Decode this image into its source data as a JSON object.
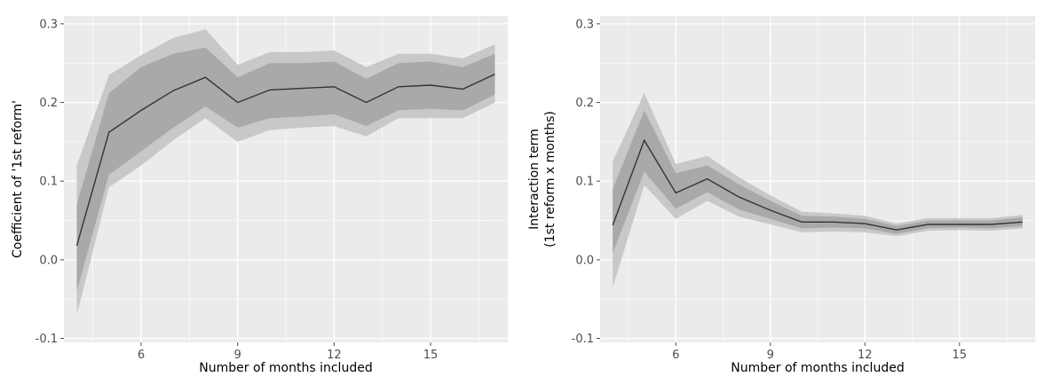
{
  "chart_data": [
    {
      "type": "line",
      "xlabel": "Number of months included",
      "ylabel": "Coefficient of '1st reform'",
      "xlim": [
        3.6,
        17.4
      ],
      "ylim": [
        -0.105,
        0.31
      ],
      "xticks": [
        6,
        9,
        12,
        15
      ],
      "xtick_labels": [
        "6",
        "9",
        "12",
        "15"
      ],
      "yticks": [
        -0.1,
        0.0,
        0.1,
        0.2,
        0.3
      ],
      "ytick_labels": [
        "-0.1",
        "0.0",
        "0.1",
        "0.2",
        "0.3"
      ],
      "grid": true,
      "colors": {
        "panel": "#ebebeb",
        "grid": "#ffffff",
        "band_outer": "#c8c8c8",
        "band_inner": "#a9a9a9",
        "line": "#333333",
        "text": "#4d4d4d"
      },
      "x": [
        4,
        5,
        6,
        7,
        8,
        9,
        10,
        11,
        12,
        13,
        14,
        15,
        16,
        17
      ],
      "series": [
        {
          "values": [
            0.018,
            0.162,
            0.19,
            0.215,
            0.232,
            0.2,
            0.216,
            0.218,
            0.22,
            0.2,
            0.22,
            0.222,
            0.217,
            0.236
          ],
          "ci_inner": [
            [
              -0.04,
              0.07
            ],
            [
              0.108,
              0.212
            ],
            [
              0.138,
              0.245
            ],
            [
              0.168,
              0.262
            ],
            [
              0.195,
              0.27
            ],
            [
              0.168,
              0.232
            ],
            [
              0.18,
              0.25
            ],
            [
              0.182,
              0.25
            ],
            [
              0.185,
              0.252
            ],
            [
              0.17,
              0.23
            ],
            [
              0.19,
              0.25
            ],
            [
              0.192,
              0.252
            ],
            [
              0.19,
              0.245
            ],
            [
              0.21,
              0.262
            ]
          ],
          "ci_outer": [
            [
              -0.07,
              0.12
            ],
            [
              0.092,
              0.235
            ],
            [
              0.12,
              0.26
            ],
            [
              0.152,
              0.282
            ],
            [
              0.18,
              0.293
            ],
            [
              0.15,
              0.248
            ],
            [
              0.165,
              0.264
            ],
            [
              0.168,
              0.264
            ],
            [
              0.17,
              0.266
            ],
            [
              0.157,
              0.245
            ],
            [
              0.18,
              0.262
            ],
            [
              0.18,
              0.262
            ],
            [
              0.18,
              0.256
            ],
            [
              0.2,
              0.274
            ]
          ]
        }
      ]
    },
    {
      "type": "line",
      "xlabel": "Number of months included",
      "ylabel": "Interaction term",
      "ylabel2": "(1st reform x months)",
      "xlim": [
        3.6,
        17.4
      ],
      "ylim": [
        -0.105,
        0.31
      ],
      "xticks": [
        6,
        9,
        12,
        15
      ],
      "xtick_labels": [
        "6",
        "9",
        "12",
        "15"
      ],
      "yticks": [
        -0.1,
        0.0,
        0.1,
        0.2,
        0.3
      ],
      "ytick_labels": [
        "-0.1",
        "0.0",
        "0.1",
        "0.2",
        "0.3"
      ],
      "grid": true,
      "colors": {
        "panel": "#ebebeb",
        "grid": "#ffffff",
        "band_outer": "#c8c8c8",
        "band_inner": "#a9a9a9",
        "line": "#333333",
        "text": "#4d4d4d"
      },
      "x": [
        4,
        5,
        6,
        7,
        8,
        9,
        10,
        11,
        12,
        13,
        14,
        15,
        16,
        17
      ],
      "series": [
        {
          "values": [
            0.044,
            0.152,
            0.085,
            0.103,
            0.08,
            0.063,
            0.048,
            0.048,
            0.046,
            0.038,
            0.045,
            0.045,
            0.045,
            0.048
          ],
          "ci_inner": [
            [
              0.008,
              0.09
            ],
            [
              0.112,
              0.19
            ],
            [
              0.065,
              0.11
            ],
            [
              0.086,
              0.12
            ],
            [
              0.064,
              0.096
            ],
            [
              0.052,
              0.075
            ],
            [
              0.04,
              0.056
            ],
            [
              0.041,
              0.055
            ],
            [
              0.04,
              0.052
            ],
            [
              0.033,
              0.043
            ],
            [
              0.04,
              0.05
            ],
            [
              0.041,
              0.05
            ],
            [
              0.04,
              0.05
            ],
            [
              0.043,
              0.054
            ]
          ],
          "ci_outer": [
            [
              -0.035,
              0.125
            ],
            [
              0.095,
              0.212
            ],
            [
              0.052,
              0.122
            ],
            [
              0.075,
              0.132
            ],
            [
              0.055,
              0.105
            ],
            [
              0.045,
              0.082
            ],
            [
              0.035,
              0.061
            ],
            [
              0.036,
              0.059
            ],
            [
              0.035,
              0.056
            ],
            [
              0.03,
              0.046
            ],
            [
              0.037,
              0.053
            ],
            [
              0.038,
              0.053
            ],
            [
              0.037,
              0.053
            ],
            [
              0.04,
              0.057
            ]
          ]
        }
      ]
    }
  ]
}
